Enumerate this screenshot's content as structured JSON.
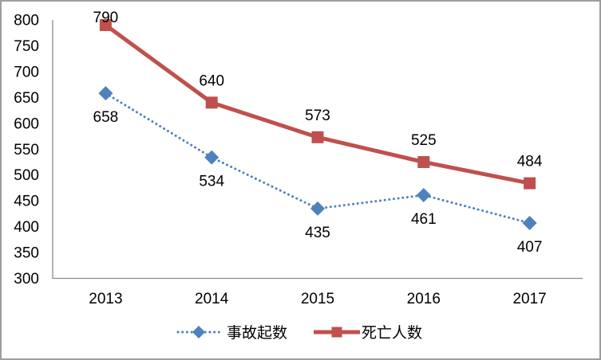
{
  "chart_data": {
    "type": "line",
    "title": "",
    "xlabel": "",
    "ylabel": "",
    "categories": [
      "2013",
      "2014",
      "2015",
      "2016",
      "2017"
    ],
    "series": [
      {
        "name": "事故起数",
        "values": [
          658,
          534,
          435,
          461,
          407
        ],
        "data_labels": [
          "658",
          "534",
          "435",
          "461",
          "407"
        ],
        "color": "#4f81bd",
        "line_style": "dotted",
        "marker": "diamond",
        "label_position": "below"
      },
      {
        "name": "死亡人数",
        "values": [
          790,
          640,
          573,
          525,
          484
        ],
        "data_labels": [
          "790",
          "640",
          "573",
          "525",
          "484"
        ],
        "color": "#c0504d",
        "line_style": "solid",
        "marker": "square",
        "label_position": "above"
      }
    ],
    "ylim": [
      300,
      800
    ],
    "ytick_step": 50,
    "ytick_labels": [
      "800",
      "750",
      "700",
      "650",
      "600",
      "550",
      "500",
      "450",
      "400",
      "350",
      "300"
    ],
    "grid": false,
    "legend_position": "bottom",
    "axis_color": "#8c8c8c",
    "text_color": "#000000",
    "background_color": "#ffffff",
    "border_color": "#9d9d9d"
  }
}
